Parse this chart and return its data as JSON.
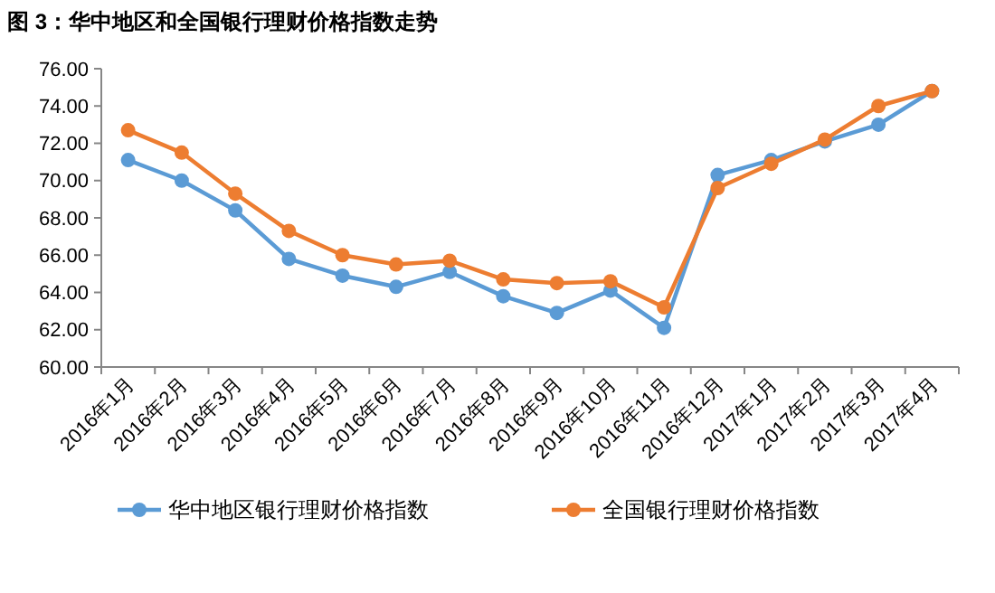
{
  "chart_data": {
    "type": "line",
    "title": "图 3：华中地区和全国银行理财价格指数走势",
    "categories": [
      "2016年1月",
      "2016年2月",
      "2016年3月",
      "2016年4月",
      "2016年5月",
      "2016年6月",
      "2016年7月",
      "2016年8月",
      "2016年9月",
      "2016年10月",
      "2016年11月",
      "2016年12月",
      "2017年1月",
      "2017年2月",
      "2017年3月",
      "2017年4月"
    ],
    "series": [
      {
        "name": "华中地区银行理财价格指数",
        "color": "#5b9bd5",
        "values": [
          71.1,
          70.0,
          68.4,
          65.8,
          64.9,
          64.3,
          65.1,
          63.8,
          62.9,
          64.1,
          62.1,
          70.3,
          71.1,
          72.1,
          73.0,
          74.8
        ]
      },
      {
        "name": "全国银行理财价格指数",
        "color": "#ed7d31",
        "values": [
          72.7,
          71.5,
          69.3,
          67.3,
          66.0,
          65.5,
          65.7,
          64.7,
          64.5,
          64.6,
          63.2,
          69.6,
          70.9,
          72.2,
          74.0,
          74.8
        ]
      }
    ],
    "ylim": [
      60,
      76
    ],
    "yticks": [
      {
        "value": 60,
        "label": "60.00"
      },
      {
        "value": 62,
        "label": "62.00"
      },
      {
        "value": 64,
        "label": "64.00"
      },
      {
        "value": 66,
        "label": "66.00"
      },
      {
        "value": 68,
        "label": "68.00"
      },
      {
        "value": 70,
        "label": "70.00"
      },
      {
        "value": 72,
        "label": "72.00"
      },
      {
        "value": 74,
        "label": "74.00"
      },
      {
        "value": 76,
        "label": "76.00"
      }
    ],
    "grid": false,
    "legend": "bottom",
    "marker": "circle",
    "line_style": "solid"
  }
}
